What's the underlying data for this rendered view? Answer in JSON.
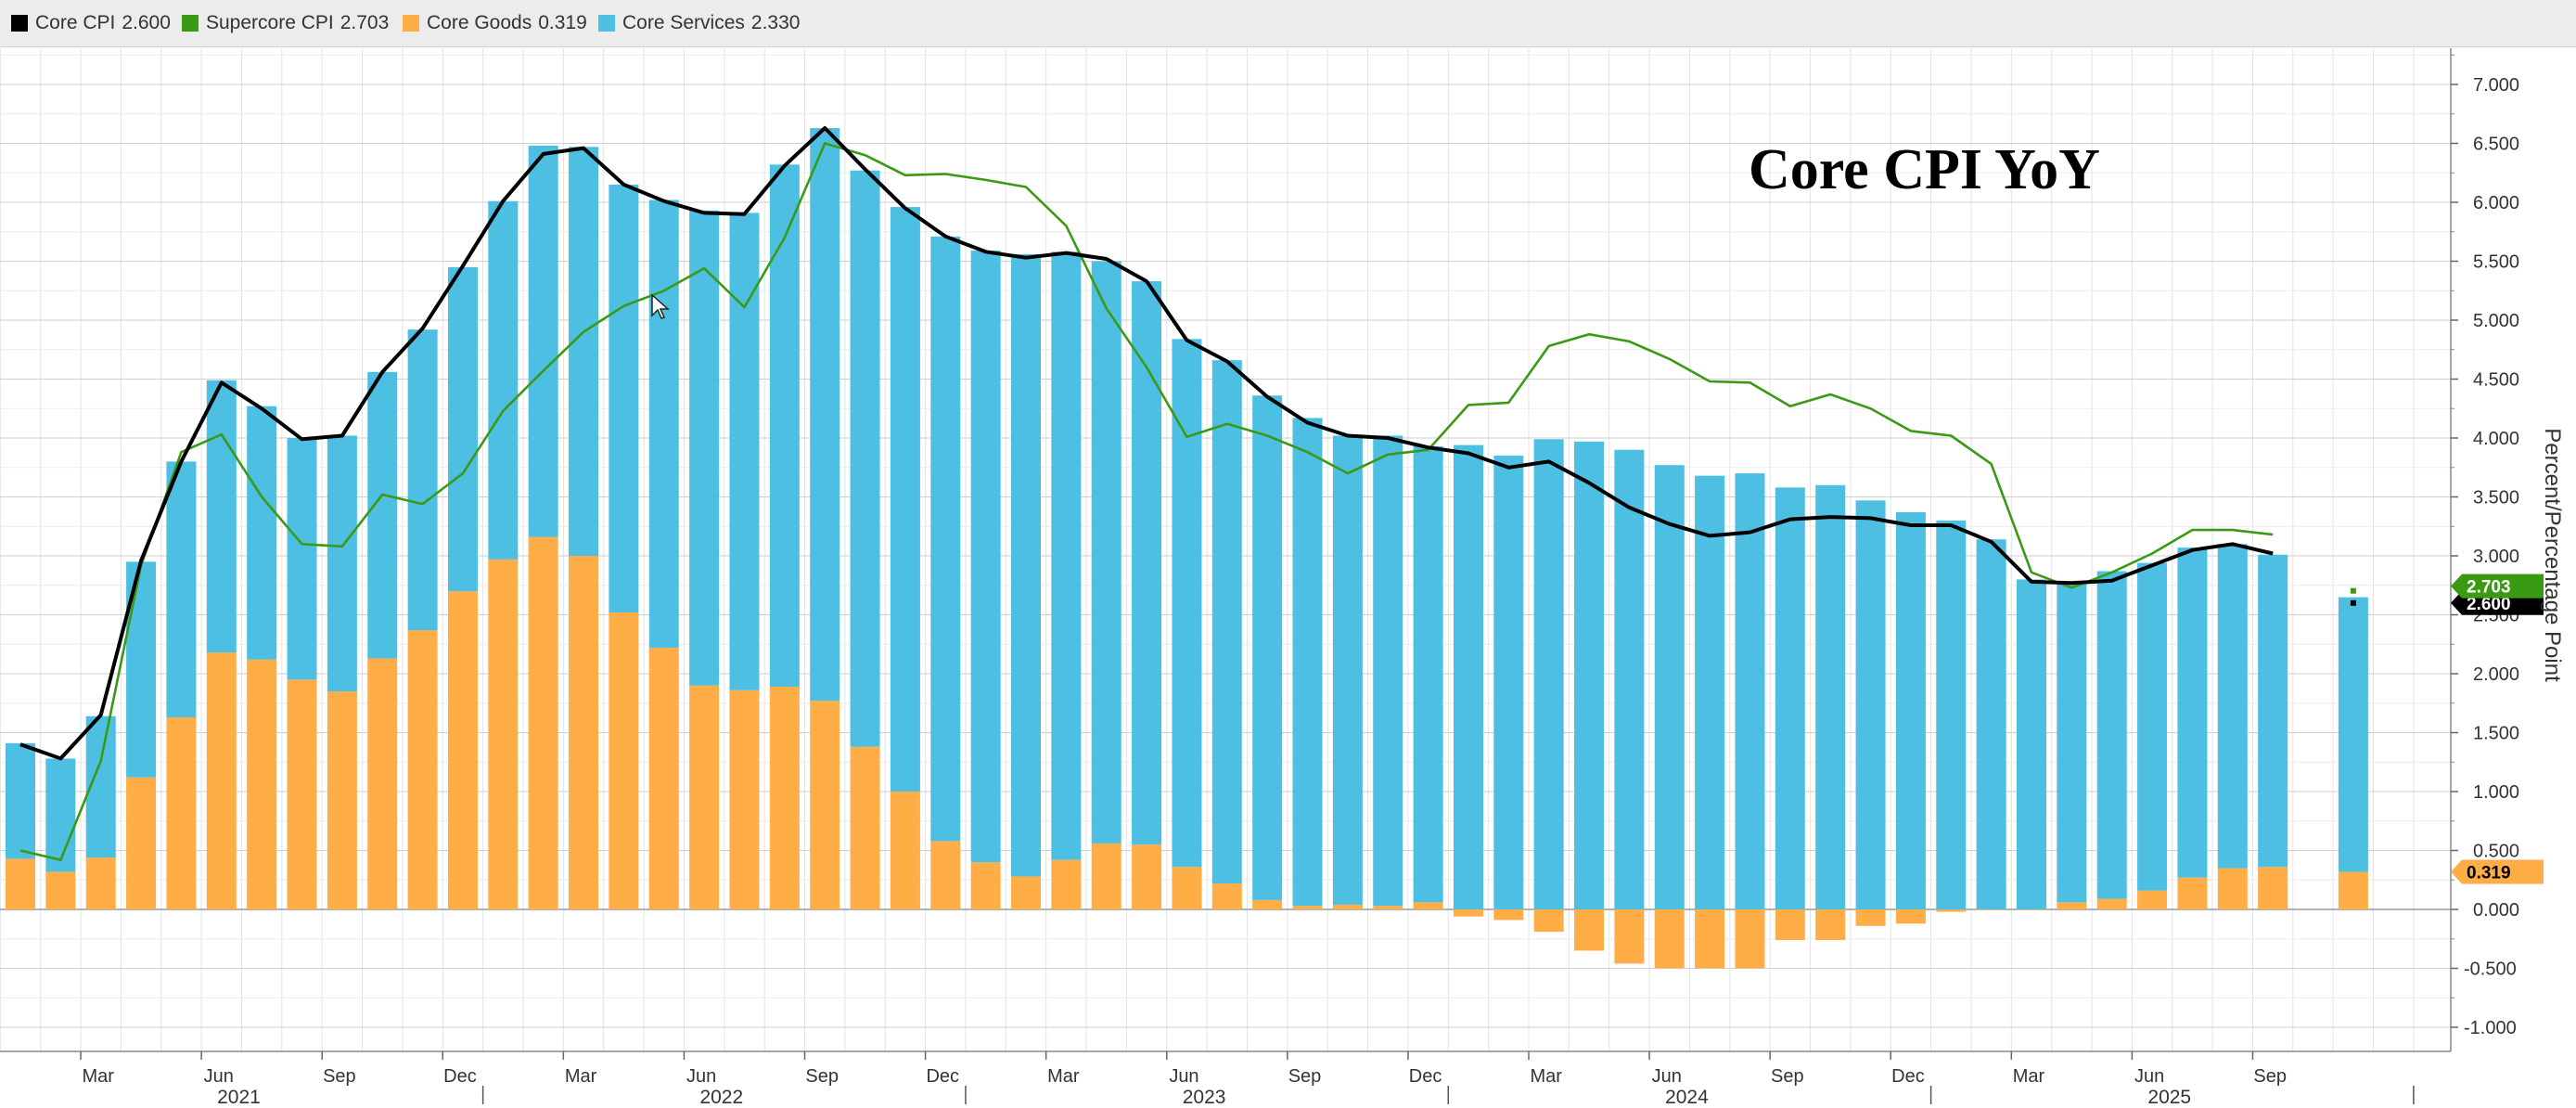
{
  "legend": [
    {
      "label": "Core CPI",
      "value": "2.600",
      "color": "#000000"
    },
    {
      "label": "Supercore CPI",
      "value": "2.703",
      "color": "#3a9a14"
    },
    {
      "label": "Core Goods",
      "value": "0.319",
      "color": "#ffad47"
    },
    {
      "label": "Core Services",
      "value": "2.330",
      "color": "#4cbfe3"
    }
  ],
  "chart_data": {
    "type": "bar",
    "title": "Core CPI YoY",
    "ylabel": "Percent/Percentage Point",
    "ylim": [
      -1.2,
      7.3
    ],
    "y_ticks": [
      "7.000",
      "6.500",
      "6.000",
      "5.500",
      "5.000",
      "4.500",
      "4.000",
      "3.500",
      "3.000",
      "2.500",
      "2.000",
      "1.500",
      "1.000",
      "0.500",
      "0.000",
      "-0.500",
      "-1.000"
    ],
    "x_month_ticks": [
      "Mar",
      "Jun",
      "Sep",
      "Dec",
      "Mar",
      "Jun",
      "Sep",
      "Dec",
      "Mar",
      "Jun",
      "Sep",
      "Dec",
      "Mar",
      "Jun",
      "Sep",
      "Dec",
      "Mar",
      "Jun",
      "Sep"
    ],
    "x_year_ticks": [
      "2021",
      "2022",
      "2023",
      "2024",
      "2025"
    ],
    "grid": true,
    "legend_position": "top",
    "start_month": "Jan 2021",
    "series": [
      {
        "name": "Core Goods",
        "kind": "bar",
        "values": [
          0.43,
          0.32,
          0.44,
          1.12,
          1.63,
          2.18,
          2.12,
          1.95,
          1.85,
          2.13,
          2.37,
          2.7,
          2.97,
          3.16,
          3.0,
          2.52,
          2.22,
          1.9,
          1.86,
          1.89,
          1.77,
          1.38,
          1.0,
          0.58,
          0.4,
          0.28,
          0.42,
          0.56,
          0.55,
          0.36,
          0.22,
          0.08,
          0.03,
          0.04,
          0.03,
          0.06,
          -0.06,
          -0.09,
          -0.19,
          -0.35,
          -0.46,
          -0.5,
          -0.5,
          -0.5,
          -0.26,
          -0.26,
          -0.14,
          -0.12,
          -0.02,
          0.0,
          0.0,
          0.06,
          0.09,
          0.16,
          0.27,
          0.35,
          0.36,
          null,
          0.319
        ]
      },
      {
        "name": "Core Services",
        "kind": "bar",
        "values": [
          0.98,
          0.96,
          1.2,
          1.83,
          2.17,
          2.31,
          2.15,
          2.05,
          2.17,
          2.43,
          2.55,
          2.75,
          3.04,
          3.32,
          3.47,
          3.63,
          3.8,
          4.03,
          4.05,
          4.43,
          4.86,
          4.89,
          4.96,
          5.13,
          5.19,
          5.28,
          5.16,
          4.94,
          4.78,
          4.48,
          4.44,
          4.28,
          4.14,
          3.98,
          3.99,
          3.87,
          3.94,
          3.85,
          3.99,
          3.97,
          3.9,
          3.77,
          3.68,
          3.7,
          3.58,
          3.6,
          3.47,
          3.37,
          3.3,
          3.14,
          2.8,
          2.72,
          2.78,
          2.78,
          2.8,
          2.75,
          2.65,
          null,
          2.33
        ]
      },
      {
        "name": "Core CPI",
        "kind": "line",
        "values": [
          1.4,
          1.28,
          1.65,
          2.96,
          3.8,
          4.47,
          4.25,
          3.99,
          4.02,
          4.56,
          4.93,
          5.46,
          6.01,
          6.41,
          6.46,
          6.15,
          6.01,
          5.91,
          5.9,
          6.31,
          6.63,
          6.28,
          5.95,
          5.71,
          5.58,
          5.53,
          5.57,
          5.52,
          5.33,
          4.83,
          4.65,
          4.35,
          4.13,
          4.02,
          4.0,
          3.92,
          3.87,
          3.75,
          3.8,
          3.62,
          3.41,
          3.27,
          3.17,
          3.2,
          3.31,
          3.33,
          3.32,
          3.26,
          3.26,
          3.12,
          2.78,
          2.77,
          2.79,
          2.92,
          3.05,
          3.1,
          3.02,
          null,
          2.6
        ]
      },
      {
        "name": "Supercore CPI",
        "kind": "line",
        "values": [
          0.5,
          0.42,
          1.26,
          2.92,
          3.88,
          4.03,
          3.5,
          3.1,
          3.08,
          3.52,
          3.44,
          3.7,
          4.23,
          4.57,
          4.9,
          5.12,
          5.25,
          5.44,
          5.11,
          5.7,
          6.5,
          6.4,
          6.23,
          6.24,
          6.19,
          6.13,
          5.8,
          5.1,
          4.6,
          4.01,
          4.12,
          4.02,
          3.88,
          3.7,
          3.86,
          3.9,
          4.28,
          4.3,
          4.78,
          4.88,
          4.82,
          4.67,
          4.48,
          4.47,
          4.27,
          4.37,
          4.25,
          4.06,
          4.02,
          3.78,
          2.86,
          2.73,
          2.86,
          3.02,
          3.22,
          3.22,
          3.18,
          null,
          2.703
        ]
      }
    ],
    "last_value_tags": [
      "2.703",
      "2.600",
      "0.319"
    ]
  }
}
